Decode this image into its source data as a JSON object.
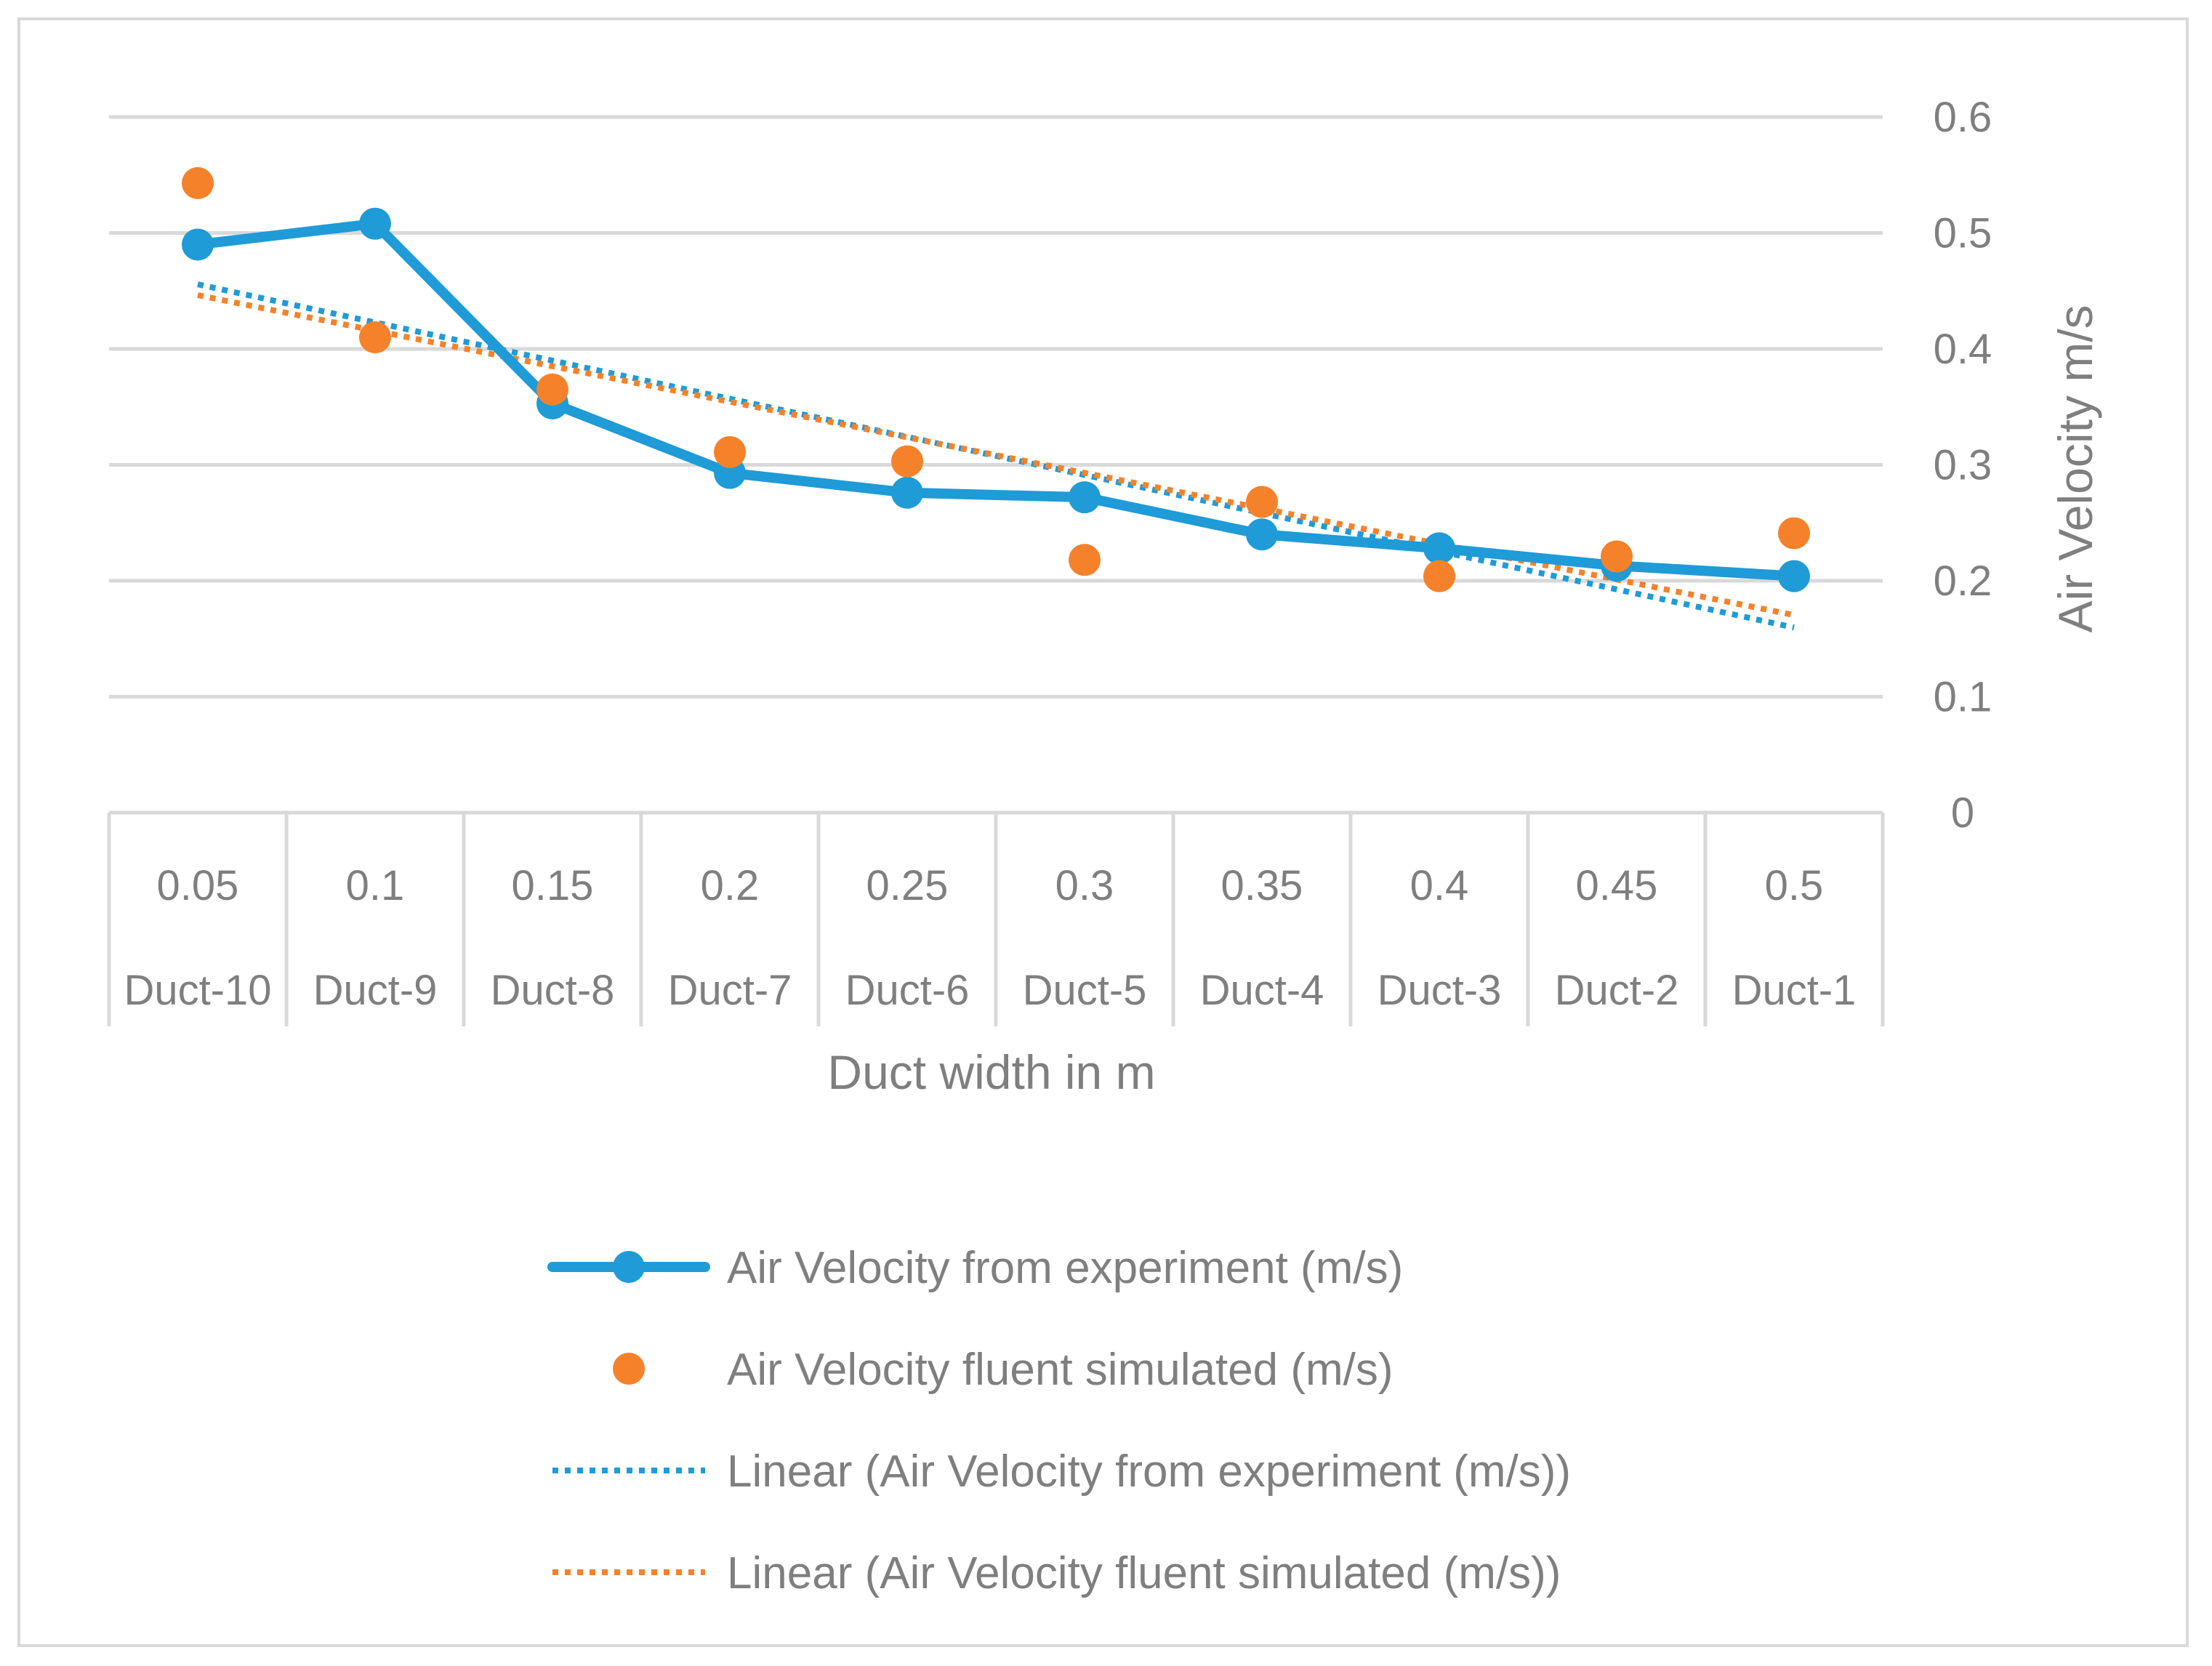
{
  "chart_data": {
    "type": "line",
    "title": "",
    "xlabel": "Duct width in m",
    "ylabel": "Air Velocity  m/s",
    "ylim": [
      0,
      0.6
    ],
    "yticks": [
      "0",
      "0.1",
      "0.2",
      "0.3",
      "0.4",
      "0.5",
      "0.6"
    ],
    "ytick_values": [
      0,
      0.1,
      0.2,
      0.3,
      0.4,
      0.5,
      0.6
    ],
    "grid": true,
    "y_axis_side": "right",
    "legend_position": "bottom",
    "categories": [
      "0.05",
      "0.1",
      "0.15",
      "0.2",
      "0.25",
      "0.3",
      "0.35",
      "0.4",
      "0.45",
      "0.5"
    ],
    "category_labels": [
      "Duct-10",
      "Duct-9",
      "Duct-8",
      "Duct-7",
      "Duct-6",
      "Duct-5",
      "Duct-4",
      "Duct-3",
      "Duct-2",
      "Duct-1"
    ],
    "series": [
      {
        "name": "Air Velocity from experiment (m/s)",
        "style": "line-marker",
        "color": "#1f9bd7",
        "values": [
          0.49,
          0.508,
          0.353,
          0.293,
          0.276,
          0.272,
          0.24,
          0.228,
          0.213,
          0.204
        ]
      },
      {
        "name": "Air Velocity fluent simulated (m/s)",
        "style": "marker",
        "color": "#f5822a",
        "values": [
          0.543,
          0.41,
          0.365,
          0.311,
          0.303,
          0.218,
          0.268,
          0.204,
          0.221,
          0.241
        ]
      },
      {
        "name": "Linear (Air Velocity from experiment (m/s))",
        "style": "dotted",
        "color": "#1f9bd7",
        "trend_of": 0
      },
      {
        "name": "Linear (Air Velocity fluent simulated (m/s))",
        "style": "dotted",
        "color": "#f5822a",
        "trend_of": 1
      }
    ]
  }
}
